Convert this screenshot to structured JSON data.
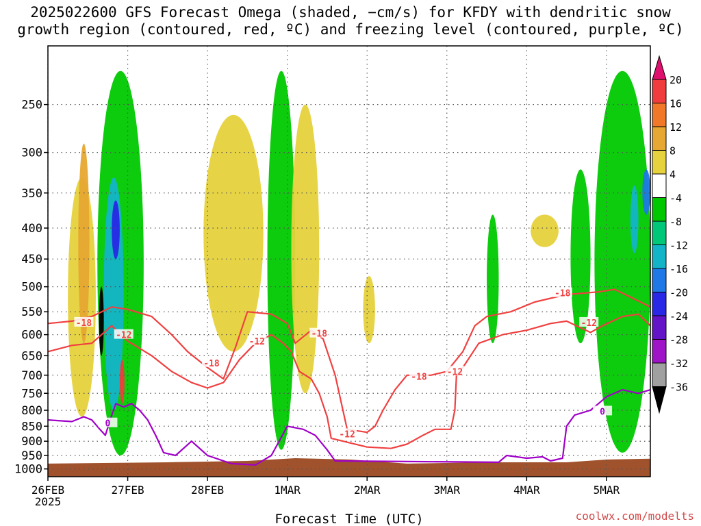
{
  "title": {
    "line1": "2025022600 GFS Forecast Omega (shaded, −cm/s) for KFDY with dendritic snow",
    "line2": "growth region (contoured, red, ºC) and freezing level (contoured, purple, ºC)"
  },
  "credit": "coolwx.com/modelts",
  "chart_data": {
    "type": "heatmap",
    "xlabel": "Forecast Time (UTC)",
    "ylabel": "",
    "x_ticks": [
      "26FEB",
      "27FEB",
      "28FEB",
      "1MAR",
      "2MAR",
      "3MAR",
      "4MAR",
      "5MAR"
    ],
    "x_year_label": "2025",
    "x_range_days": [
      0,
      7.55
    ],
    "y_ticks": [
      250,
      300,
      350,
      400,
      450,
      500,
      550,
      600,
      650,
      700,
      750,
      800,
      850,
      900,
      950,
      1000
    ],
    "y_range_hpa": [
      200,
      1030
    ],
    "y_scale": "log",
    "grid": true,
    "colorbar": {
      "labels": [
        "20",
        "16",
        "12",
        "8",
        "4",
        "-4",
        "-8",
        "-12",
        "-16",
        "-20",
        "-24",
        "-28",
        "-32",
        "-36"
      ],
      "colors": [
        "#e0106e",
        "#f03c3c",
        "#f07828",
        "#e6a832",
        "#e6d23c",
        "#ffffff",
        "#00c800",
        "#00c878",
        "#14b4c8",
        "#1e78e6",
        "#2828e6",
        "#6414c8",
        "#a014c8",
        "#a0a0a0",
        "#000000"
      ],
      "units": "−cm/s"
    },
    "omega_regions": [
      {
        "category": "4",
        "t0": 0.25,
        "t1": 0.6,
        "p_top": 330,
        "p_bot": 820
      },
      {
        "category": "8",
        "t0": 0.38,
        "t1": 0.52,
        "p_top": 290,
        "p_bot": 620
      },
      {
        "category": "-8",
        "t0": 0.62,
        "t1": 1.2,
        "p_top": 220,
        "p_bot": 950
      },
      {
        "category": "-16",
        "t0": 0.7,
        "t1": 0.95,
        "p_top": 330,
        "p_bot": 800
      },
      {
        "category": "-24",
        "t0": 0.8,
        "t1": 0.9,
        "p_top": 360,
        "p_bot": 450
      },
      {
        "category": "-36",
        "t0": 0.64,
        "t1": 0.7,
        "p_top": 500,
        "p_bot": 650
      },
      {
        "category": "16",
        "t0": 0.9,
        "t1": 0.96,
        "p_top": 660,
        "p_bot": 780
      },
      {
        "category": "4",
        "t0": 1.95,
        "t1": 2.7,
        "p_top": 260,
        "p_bot": 640
      },
      {
        "category": "-8",
        "t0": 2.75,
        "t1": 3.1,
        "p_top": 220,
        "p_bot": 930
      },
      {
        "category": "4",
        "t0": 3.05,
        "t1": 3.4,
        "p_top": 250,
        "p_bot": 750
      },
      {
        "category": "4",
        "t0": 3.95,
        "t1": 4.1,
        "p_top": 480,
        "p_bot": 620
      },
      {
        "category": "-8",
        "t0": 5.5,
        "t1": 5.65,
        "p_top": 380,
        "p_bot": 620
      },
      {
        "category": "4",
        "t0": 6.05,
        "t1": 6.4,
        "p_top": 380,
        "p_bot": 430
      },
      {
        "category": "-8",
        "t0": 6.55,
        "t1": 6.8,
        "p_top": 320,
        "p_bot": 620
      },
      {
        "category": "-8",
        "t0": 6.85,
        "t1": 7.55,
        "p_top": 220,
        "p_bot": 940
      },
      {
        "category": "-16",
        "t0": 7.3,
        "t1": 7.4,
        "p_top": 340,
        "p_bot": 440
      },
      {
        "category": "-20",
        "t0": 7.45,
        "t1": 7.55,
        "p_top": 320,
        "p_bot": 380
      }
    ],
    "contours": [
      {
        "label": "-18",
        "color": "#f04040",
        "points": [
          [
            0,
            575
          ],
          [
            0.3,
            570
          ],
          [
            0.55,
            560
          ],
          [
            0.8,
            540
          ],
          [
            1.0,
            545
          ],
          [
            1.3,
            560
          ],
          [
            1.55,
            600
          ],
          [
            1.75,
            640
          ],
          [
            2.0,
            680
          ],
          [
            2.2,
            710
          ],
          [
            2.35,
            630
          ],
          [
            2.5,
            550
          ],
          [
            2.8,
            555
          ],
          [
            3.0,
            575
          ],
          [
            3.1,
            620
          ],
          [
            3.3,
            590
          ],
          [
            3.45,
            610
          ],
          [
            3.6,
            700
          ],
          [
            3.75,
            860
          ],
          [
            4.0,
            870
          ],
          [
            4.1,
            850
          ],
          [
            4.2,
            800
          ],
          [
            4.35,
            740
          ],
          [
            4.5,
            700
          ],
          [
            4.8,
            700
          ],
          [
            5.0,
            690
          ],
          [
            5.2,
            640
          ],
          [
            5.35,
            580
          ],
          [
            5.5,
            560
          ],
          [
            5.8,
            550
          ],
          [
            6.1,
            530
          ],
          [
            6.5,
            515
          ],
          [
            6.9,
            510
          ],
          [
            7.1,
            505
          ],
          [
            7.3,
            520
          ],
          [
            7.55,
            540
          ]
        ]
      },
      {
        "label": "-12",
        "color": "#f04040",
        "points": [
          [
            0,
            640
          ],
          [
            0.3,
            625
          ],
          [
            0.55,
            620
          ],
          [
            0.8,
            580
          ],
          [
            1.0,
            615
          ],
          [
            1.3,
            650
          ],
          [
            1.55,
            690
          ],
          [
            1.8,
            720
          ],
          [
            2.0,
            735
          ],
          [
            2.2,
            720
          ],
          [
            2.4,
            660
          ],
          [
            2.6,
            620
          ],
          [
            2.8,
            600
          ],
          [
            2.95,
            620
          ],
          [
            3.05,
            640
          ],
          [
            3.15,
            690
          ],
          [
            3.3,
            710
          ],
          [
            3.4,
            750
          ],
          [
            3.5,
            820
          ],
          [
            3.55,
            890
          ],
          [
            3.7,
            900
          ],
          [
            4.0,
            920
          ],
          [
            4.3,
            925
          ],
          [
            4.5,
            910
          ],
          [
            4.7,
            880
          ],
          [
            4.85,
            860
          ],
          [
            5.05,
            860
          ],
          [
            5.1,
            800
          ],
          [
            5.12,
            700
          ],
          [
            5.2,
            680
          ],
          [
            5.4,
            620
          ],
          [
            5.7,
            600
          ],
          [
            6.0,
            590
          ],
          [
            6.3,
            575
          ],
          [
            6.5,
            570
          ],
          [
            6.8,
            595
          ],
          [
            6.95,
            580
          ],
          [
            7.2,
            560
          ],
          [
            7.4,
            555
          ],
          [
            7.55,
            580
          ]
        ]
      },
      {
        "label": "0",
        "color": "#a000c8",
        "points": [
          [
            0,
            830
          ],
          [
            0.3,
            835
          ],
          [
            0.45,
            820
          ],
          [
            0.55,
            830
          ],
          [
            0.65,
            860
          ],
          [
            0.72,
            880
          ],
          [
            0.78,
            830
          ],
          [
            0.85,
            780
          ],
          [
            0.95,
            790
          ],
          [
            1.05,
            780
          ],
          [
            1.15,
            800
          ],
          [
            1.25,
            830
          ],
          [
            1.35,
            880
          ],
          [
            1.45,
            940
          ],
          [
            1.6,
            950
          ],
          [
            1.8,
            900
          ],
          [
            2.0,
            950
          ],
          [
            2.3,
            980
          ],
          [
            2.6,
            985
          ],
          [
            2.8,
            950
          ],
          [
            3.0,
            850
          ],
          [
            3.2,
            860
          ],
          [
            3.35,
            880
          ],
          [
            3.5,
            930
          ],
          [
            3.6,
            970
          ],
          [
            5.65,
            975
          ],
          [
            5.75,
            950
          ],
          [
            6.0,
            960
          ],
          [
            6.2,
            955
          ],
          [
            6.3,
            970
          ],
          [
            6.45,
            960
          ],
          [
            6.5,
            850
          ],
          [
            6.6,
            815
          ],
          [
            6.8,
            800
          ],
          [
            6.9,
            780
          ],
          [
            7.0,
            760
          ],
          [
            7.2,
            740
          ],
          [
            7.4,
            750
          ],
          [
            7.55,
            740
          ]
        ]
      }
    ],
    "contour_labels": [
      {
        "text": "-18",
        "t": 0.45,
        "p": 573
      },
      {
        "text": "-12",
        "t": 0.95,
        "p": 600
      },
      {
        "text": "-18",
        "t": 2.05,
        "p": 668
      },
      {
        "text": "-12",
        "t": 2.62,
        "p": 615
      },
      {
        "text": "-18",
        "t": 3.4,
        "p": 597
      },
      {
        "text": "-12",
        "t": 3.75,
        "p": 875
      },
      {
        "text": "-18",
        "t": 4.65,
        "p": 703
      },
      {
        "text": "-12",
        "t": 5.1,
        "p": 690
      },
      {
        "text": "-18",
        "t": 6.45,
        "p": 512
      },
      {
        "text": "-12",
        "t": 6.78,
        "p": 573
      },
      {
        "text": "0",
        "t": 0.75,
        "p": 840
      },
      {
        "text": "0",
        "t": 6.95,
        "p": 803
      }
    ],
    "terrain_color": "#a0522d",
    "surface_pressure_hpa": [
      [
        0,
        980
      ],
      [
        1.5,
        975
      ],
      [
        2.5,
        970
      ],
      [
        3.1,
        960
      ],
      [
        3.8,
        965
      ],
      [
        4.5,
        980
      ],
      [
        5.5,
        975
      ],
      [
        6.5,
        975
      ],
      [
        7.0,
        965
      ],
      [
        7.55,
        962
      ]
    ]
  }
}
